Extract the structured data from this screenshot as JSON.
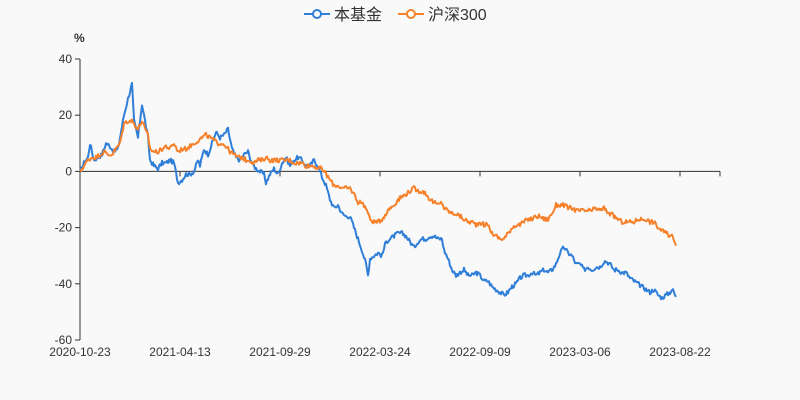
{
  "chart_data": {
    "type": "line",
    "unit_label": "%",
    "y_ticks": [
      40,
      20,
      0,
      -20,
      -40,
      -60
    ],
    "ylim": [
      -60,
      40
    ],
    "x_tick_labels": [
      "2020-10-23",
      "2021-04-13",
      "2021-09-29",
      "2022-03-24",
      "2022-09-09",
      "2023-03-06",
      "2023-08-22"
    ],
    "grid": false,
    "legend_position": "top-center",
    "series": [
      {
        "name": "本基金",
        "color": "#2f7ed8",
        "keyframes": [
          [
            0,
            0
          ],
          [
            4,
            3
          ],
          [
            8,
            5
          ],
          [
            10,
            10
          ],
          [
            14,
            4
          ],
          [
            18,
            5
          ],
          [
            22,
            6
          ],
          [
            26,
            10
          ],
          [
            30,
            9
          ],
          [
            34,
            7
          ],
          [
            38,
            8
          ],
          [
            40,
            12
          ],
          [
            44,
            20
          ],
          [
            48,
            26
          ],
          [
            52,
            31
          ],
          [
            54,
            18
          ],
          [
            58,
            12
          ],
          [
            62,
            24
          ],
          [
            66,
            16
          ],
          [
            68,
            12
          ],
          [
            70,
            4
          ],
          [
            74,
            2
          ],
          [
            78,
            1
          ],
          [
            82,
            3
          ],
          [
            86,
            3
          ],
          [
            90,
            4
          ],
          [
            94,
            3
          ],
          [
            98,
            -4
          ],
          [
            102,
            -3
          ],
          [
            106,
            -1
          ],
          [
            110,
            -1
          ],
          [
            114,
            0
          ],
          [
            118,
            4
          ],
          [
            120,
            2
          ],
          [
            124,
            8
          ],
          [
            128,
            6
          ],
          [
            132,
            10
          ],
          [
            136,
            14
          ],
          [
            140,
            12
          ],
          [
            144,
            13
          ],
          [
            148,
            15
          ],
          [
            152,
            8
          ],
          [
            156,
            5
          ],
          [
            160,
            4
          ],
          [
            164,
            6
          ],
          [
            168,
            7
          ],
          [
            172,
            3
          ],
          [
            176,
            1
          ],
          [
            180,
            0
          ],
          [
            184,
            -1
          ],
          [
            186,
            -4
          ],
          [
            190,
            -1
          ],
          [
            194,
            1
          ],
          [
            198,
            -1
          ],
          [
            202,
            3
          ],
          [
            206,
            5
          ],
          [
            210,
            2
          ],
          [
            214,
            4
          ],
          [
            218,
            5
          ],
          [
            222,
            4
          ],
          [
            226,
            2
          ],
          [
            230,
            2
          ],
          [
            234,
            4
          ],
          [
            238,
            2
          ],
          [
            242,
            -2
          ],
          [
            246,
            -5
          ],
          [
            250,
            -10
          ],
          [
            254,
            -13
          ],
          [
            258,
            -12
          ],
          [
            262,
            -15
          ],
          [
            266,
            -16
          ],
          [
            270,
            -16
          ],
          [
            274,
            -20
          ],
          [
            278,
            -24
          ],
          [
            282,
            -28
          ],
          [
            286,
            -33
          ],
          [
            288,
            -37
          ],
          [
            290,
            -31
          ],
          [
            294,
            -30
          ],
          [
            298,
            -29
          ],
          [
            302,
            -30
          ],
          [
            306,
            -25
          ],
          [
            310,
            -24
          ],
          [
            314,
            -23
          ],
          [
            318,
            -22
          ],
          [
            322,
            -22
          ],
          [
            326,
            -23
          ],
          [
            330,
            -25
          ],
          [
            334,
            -27
          ],
          [
            338,
            -25
          ],
          [
            342,
            -24
          ],
          [
            346,
            -24
          ],
          [
            350,
            -23
          ],
          [
            354,
            -23
          ],
          [
            358,
            -24
          ],
          [
            362,
            -24
          ],
          [
            364,
            -28
          ],
          [
            368,
            -31
          ],
          [
            372,
            -35
          ],
          [
            376,
            -37
          ],
          [
            380,
            -36
          ],
          [
            384,
            -35
          ],
          [
            388,
            -37
          ],
          [
            392,
            -37
          ],
          [
            396,
            -36
          ],
          [
            400,
            -37
          ],
          [
            404,
            -39
          ],
          [
            408,
            -39
          ],
          [
            412,
            -41
          ],
          [
            416,
            -42
          ],
          [
            420,
            -43
          ],
          [
            424,
            -44
          ],
          [
            428,
            -43
          ],
          [
            432,
            -41
          ],
          [
            436,
            -40
          ],
          [
            440,
            -38
          ],
          [
            444,
            -37
          ],
          [
            448,
            -37
          ],
          [
            452,
            -36
          ],
          [
            456,
            -37
          ],
          [
            460,
            -36
          ],
          [
            464,
            -35
          ],
          [
            468,
            -36
          ],
          [
            472,
            -35
          ],
          [
            476,
            -33
          ],
          [
            480,
            -29
          ],
          [
            484,
            -27
          ],
          [
            488,
            -29
          ],
          [
            492,
            -30
          ],
          [
            496,
            -33
          ],
          [
            500,
            -33
          ],
          [
            504,
            -35
          ],
          [
            508,
            -34
          ],
          [
            512,
            -35
          ],
          [
            516,
            -34
          ],
          [
            520,
            -34
          ],
          [
            524,
            -32
          ],
          [
            526,
            -32
          ],
          [
            530,
            -33
          ],
          [
            534,
            -35
          ],
          [
            538,
            -35
          ],
          [
            542,
            -36
          ],
          [
            546,
            -36
          ],
          [
            550,
            -38
          ],
          [
            554,
            -39
          ],
          [
            558,
            -40
          ],
          [
            562,
            -41
          ],
          [
            566,
            -42
          ],
          [
            570,
            -43
          ],
          [
            574,
            -42
          ],
          [
            578,
            -44
          ],
          [
            582,
            -45
          ],
          [
            586,
            -44
          ],
          [
            590,
            -43
          ],
          [
            592,
            -42
          ],
          [
            594,
            -43
          ],
          [
            596,
            -45
          ]
        ]
      },
      {
        "name": "沪深300",
        "color": "#f7812a",
        "keyframes": [
          [
            0,
            0
          ],
          [
            4,
            2
          ],
          [
            8,
            4
          ],
          [
            12,
            5
          ],
          [
            16,
            5
          ],
          [
            20,
            6
          ],
          [
            24,
            7
          ],
          [
            28,
            6
          ],
          [
            32,
            6
          ],
          [
            36,
            8
          ],
          [
            40,
            10
          ],
          [
            44,
            17
          ],
          [
            48,
            18
          ],
          [
            52,
            18
          ],
          [
            54,
            17
          ],
          [
            58,
            15
          ],
          [
            62,
            18
          ],
          [
            66,
            14
          ],
          [
            68,
            13
          ],
          [
            70,
            8
          ],
          [
            74,
            7
          ],
          [
            78,
            7
          ],
          [
            82,
            8
          ],
          [
            86,
            9
          ],
          [
            90,
            8
          ],
          [
            94,
            10
          ],
          [
            98,
            7
          ],
          [
            102,
            8
          ],
          [
            106,
            8
          ],
          [
            110,
            9
          ],
          [
            114,
            10
          ],
          [
            118,
            11
          ],
          [
            122,
            12
          ],
          [
            126,
            13
          ],
          [
            130,
            12
          ],
          [
            134,
            11
          ],
          [
            138,
            10
          ],
          [
            142,
            10
          ],
          [
            146,
            9
          ],
          [
            150,
            7
          ],
          [
            154,
            6
          ],
          [
            158,
            5
          ],
          [
            162,
            5
          ],
          [
            166,
            4
          ],
          [
            170,
            4
          ],
          [
            174,
            3
          ],
          [
            178,
            4
          ],
          [
            182,
            4
          ],
          [
            186,
            5
          ],
          [
            190,
            4
          ],
          [
            194,
            4
          ],
          [
            198,
            4
          ],
          [
            202,
            4
          ],
          [
            206,
            4
          ],
          [
            210,
            4
          ],
          [
            214,
            3
          ],
          [
            218,
            3
          ],
          [
            222,
            3
          ],
          [
            226,
            2
          ],
          [
            230,
            2
          ],
          [
            234,
            2
          ],
          [
            238,
            1
          ],
          [
            242,
            1
          ],
          [
            246,
            -1
          ],
          [
            250,
            -3
          ],
          [
            254,
            -5
          ],
          [
            258,
            -5
          ],
          [
            262,
            -6
          ],
          [
            266,
            -6
          ],
          [
            270,
            -6
          ],
          [
            274,
            -8
          ],
          [
            278,
            -11
          ],
          [
            282,
            -11
          ],
          [
            286,
            -13
          ],
          [
            288,
            -15
          ],
          [
            290,
            -17
          ],
          [
            294,
            -18
          ],
          [
            298,
            -18
          ],
          [
            302,
            -17
          ],
          [
            306,
            -15
          ],
          [
            310,
            -13
          ],
          [
            314,
            -12
          ],
          [
            318,
            -10
          ],
          [
            322,
            -9
          ],
          [
            326,
            -8
          ],
          [
            330,
            -7
          ],
          [
            334,
            -6
          ],
          [
            338,
            -7
          ],
          [
            342,
            -7
          ],
          [
            346,
            -8
          ],
          [
            350,
            -10
          ],
          [
            354,
            -11
          ],
          [
            358,
            -12
          ],
          [
            362,
            -11
          ],
          [
            364,
            -13
          ],
          [
            368,
            -14
          ],
          [
            372,
            -15
          ],
          [
            376,
            -15
          ],
          [
            380,
            -16
          ],
          [
            384,
            -17
          ],
          [
            388,
            -18
          ],
          [
            392,
            -18
          ],
          [
            396,
            -19
          ],
          [
            400,
            -18
          ],
          [
            404,
            -19
          ],
          [
            408,
            -19
          ],
          [
            412,
            -22
          ],
          [
            416,
            -23
          ],
          [
            420,
            -24
          ],
          [
            424,
            -24
          ],
          [
            428,
            -22
          ],
          [
            432,
            -20
          ],
          [
            436,
            -19
          ],
          [
            440,
            -19
          ],
          [
            444,
            -18
          ],
          [
            448,
            -17
          ],
          [
            452,
            -17
          ],
          [
            456,
            -16
          ],
          [
            460,
            -16
          ],
          [
            464,
            -17
          ],
          [
            468,
            -17
          ],
          [
            472,
            -15
          ],
          [
            476,
            -12
          ],
          [
            480,
            -12
          ],
          [
            484,
            -12
          ],
          [
            488,
            -13
          ],
          [
            492,
            -13
          ],
          [
            496,
            -14
          ],
          [
            500,
            -14
          ],
          [
            504,
            -14
          ],
          [
            508,
            -14
          ],
          [
            512,
            -14
          ],
          [
            516,
            -13
          ],
          [
            520,
            -14
          ],
          [
            524,
            -13
          ],
          [
            526,
            -14
          ],
          [
            530,
            -15
          ],
          [
            534,
            -16
          ],
          [
            538,
            -17
          ],
          [
            542,
            -18
          ],
          [
            546,
            -18
          ],
          [
            550,
            -18
          ],
          [
            554,
            -18
          ],
          [
            558,
            -17
          ],
          [
            562,
            -17
          ],
          [
            566,
            -17
          ],
          [
            570,
            -18
          ],
          [
            574,
            -18
          ],
          [
            578,
            -20
          ],
          [
            582,
            -21
          ],
          [
            586,
            -22
          ],
          [
            590,
            -23
          ],
          [
            592,
            -23
          ],
          [
            594,
            -24
          ],
          [
            596,
            -26
          ]
        ]
      }
    ]
  }
}
